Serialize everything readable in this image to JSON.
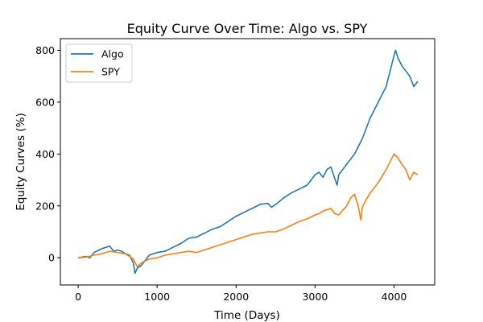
{
  "chart_data": {
    "type": "line",
    "title": "Equity Curve Over Time: Algo vs. SPY",
    "xlabel": "Time (Days)",
    "ylabel": "Equity Curves (%)",
    "xlim": [
      -225,
      4515
    ],
    "ylim": [
      -105,
      845
    ],
    "xticks": [
      0,
      1000,
      2000,
      3000,
      4000
    ],
    "xtick_labels": [
      "0",
      "1000",
      "2000",
      "3000",
      "4000"
    ],
    "yticks": [
      0,
      200,
      400,
      600,
      800
    ],
    "ytick_labels": [
      "0",
      "200",
      "400",
      "600",
      "800"
    ],
    "grid": false,
    "legend": {
      "position": "top-left",
      "entries": [
        "Algo",
        "SPY"
      ]
    },
    "series": [
      {
        "name": "Algo",
        "color": "#1f77b4",
        "x": [
          0,
          100,
          150,
          200,
          300,
          400,
          450,
          500,
          550,
          600,
          650,
          700,
          720,
          750,
          800,
          900,
          1000,
          1100,
          1200,
          1300,
          1400,
          1500,
          1600,
          1700,
          1800,
          1900,
          2000,
          2100,
          2200,
          2300,
          2400,
          2450,
          2500,
          2600,
          2700,
          2800,
          2900,
          3000,
          3050,
          3100,
          3150,
          3200,
          3250,
          3280,
          3300,
          3400,
          3500,
          3550,
          3600,
          3650,
          3700,
          3800,
          3900,
          3950,
          4000,
          4020,
          4050,
          4100,
          4150,
          4200,
          4250,
          4300
        ],
        "y": [
          0,
          5,
          0,
          20,
          35,
          45,
          25,
          30,
          25,
          15,
          10,
          -20,
          -60,
          -40,
          -30,
          10,
          20,
          25,
          40,
          55,
          75,
          80,
          95,
          110,
          120,
          140,
          160,
          175,
          190,
          205,
          210,
          195,
          205,
          230,
          250,
          265,
          280,
          320,
          330,
          310,
          340,
          350,
          305,
          280,
          320,
          360,
          400,
          430,
          460,
          500,
          540,
          600,
          660,
          720,
          780,
          800,
          770,
          740,
          720,
          700,
          660,
          680
        ]
      },
      {
        "name": "SPY",
        "color": "#ff7f0e",
        "x": [
          0,
          100,
          200,
          300,
          400,
          500,
          600,
          700,
          750,
          800,
          900,
          1000,
          1100,
          1200,
          1300,
          1400,
          1500,
          1600,
          1700,
          1800,
          1900,
          2000,
          2100,
          2200,
          2300,
          2400,
          2500,
          2600,
          2700,
          2800,
          2900,
          3000,
          3050,
          3100,
          3150,
          3200,
          3250,
          3300,
          3400,
          3450,
          3500,
          3550,
          3580,
          3600,
          3650,
          3700,
          3800,
          3900,
          4000,
          4050,
          4100,
          4150,
          4200,
          4250,
          4300
        ],
        "y": [
          0,
          2,
          10,
          15,
          25,
          20,
          15,
          -5,
          -35,
          -20,
          -5,
          0,
          10,
          15,
          20,
          25,
          20,
          30,
          40,
          50,
          60,
          70,
          80,
          90,
          95,
          100,
          100,
          110,
          125,
          140,
          150,
          165,
          170,
          180,
          185,
          190,
          170,
          165,
          200,
          230,
          245,
          195,
          145,
          195,
          225,
          250,
          290,
          340,
          400,
          385,
          360,
          340,
          300,
          330,
          320
        ]
      }
    ]
  }
}
